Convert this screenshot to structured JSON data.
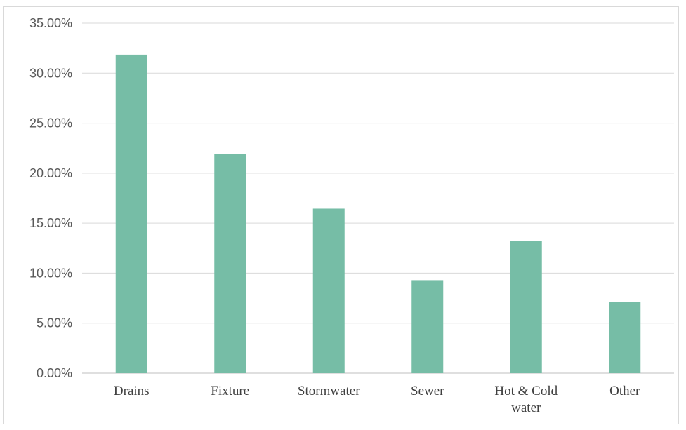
{
  "chart_data": {
    "type": "bar",
    "title": "",
    "xlabel": "",
    "ylabel": "",
    "categories": [
      "Drains",
      "Fixture",
      "Stormwater",
      "Sewer",
      "Hot & Cold water",
      "Other"
    ],
    "values": [
      31.85,
      21.95,
      16.45,
      9.3,
      13.2,
      7.1
    ],
    "ylim": [
      0,
      35
    ],
    "yticks": [
      "0.00%",
      "5.00%",
      "10.00%",
      "15.00%",
      "20.00%",
      "25.00%",
      "30.00%",
      "35.00%"
    ],
    "grid": true,
    "legend": "none",
    "bar_color": "#76bda6"
  }
}
